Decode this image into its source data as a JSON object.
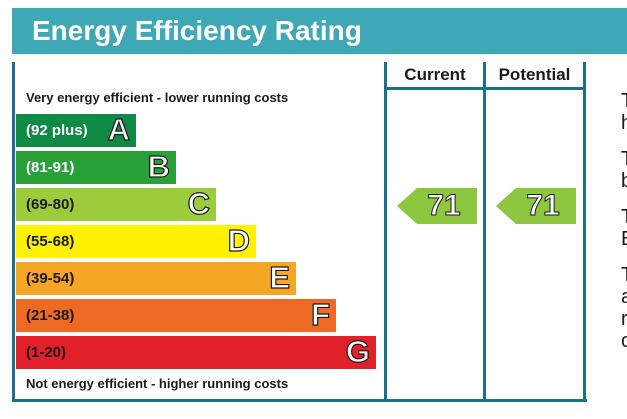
{
  "title": "Energy Efficiency Rating",
  "headers": {
    "current": "Current",
    "potential": "Potential"
  },
  "descriptions": {
    "top": "Very energy efficient - lower running costs",
    "bottom": "Not energy efficient - higher running costs"
  },
  "side_text": [
    "T",
    "h",
    "T",
    "b",
    "T",
    "E",
    "T",
    "a",
    "r",
    "c"
  ],
  "chart_data": {
    "type": "bar",
    "title": "Energy Efficiency Rating",
    "categories": [
      "A",
      "B",
      "C",
      "D",
      "E",
      "F",
      "G"
    ],
    "bands": [
      {
        "letter": "A",
        "range": "(92 plus)",
        "color": "#0f8a44",
        "text_color": "#ffffff"
      },
      {
        "letter": "B",
        "range": "(81-91)",
        "color": "#2aa038",
        "text_color": "#ffffff"
      },
      {
        "letter": "C",
        "range": "(69-80)",
        "color": "#9ccb3b",
        "text_color": "#1a1a1a"
      },
      {
        "letter": "D",
        "range": "(55-68)",
        "color": "#fff200",
        "text_color": "#1a1a1a"
      },
      {
        "letter": "E",
        "range": "(39-54)",
        "color": "#f5a623",
        "text_color": "#1a1a1a"
      },
      {
        "letter": "F",
        "range": "(21-38)",
        "color": "#ec6a24",
        "text_color": "#1a1a1a"
      },
      {
        "letter": "G",
        "range": "(1-20)",
        "color": "#e2202a",
        "text_color": "#1a1a1a"
      }
    ],
    "current": {
      "value": 71,
      "band": "C",
      "color": "#8dc63f"
    },
    "potential": {
      "value": 71,
      "band": "C",
      "color": "#8dc63f"
    }
  }
}
